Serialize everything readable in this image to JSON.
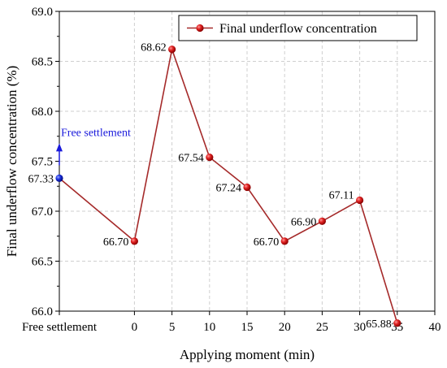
{
  "chart_data": {
    "type": "line",
    "title": "",
    "xlabel": "Applying moment (min)",
    "ylabel": "Final underflow concentration (%)",
    "ylim": [
      66.0,
      69.0
    ],
    "xlim": [
      -10,
      40
    ],
    "grid": true,
    "legend_placement": "top-right",
    "x_ticks": [
      -10,
      0,
      5,
      10,
      15,
      20,
      25,
      30,
      35,
      40
    ],
    "x_tick_labels": [
      "Free settlement",
      "0",
      "5",
      "10",
      "15",
      "20",
      "25",
      "30",
      "35",
      "40"
    ],
    "y_ticks": [
      66.0,
      66.5,
      67.0,
      67.5,
      68.0,
      68.5,
      69.0
    ],
    "y_tick_labels": [
      "66.0",
      "66.5",
      "67.0",
      "67.5",
      "68.0",
      "68.5",
      "69.0"
    ],
    "series": [
      {
        "name": "Final underflow concentration",
        "color": "#a52a2a",
        "marker_color": "#d42020",
        "points": [
          {
            "x": -10,
            "y": 67.33,
            "label": "67.33",
            "marker_color": "#1a2fd6"
          },
          {
            "x": 0,
            "y": 66.7,
            "label": "66.70"
          },
          {
            "x": 5,
            "y": 68.62,
            "label": "68.62"
          },
          {
            "x": 10,
            "y": 67.54,
            "label": "67.54"
          },
          {
            "x": 15,
            "y": 67.24,
            "label": "67.24"
          },
          {
            "x": 20,
            "y": 66.7,
            "label": "66.70"
          },
          {
            "x": 25,
            "y": 66.9,
            "label": "66.90"
          },
          {
            "x": 30,
            "y": 67.11,
            "label": "67.11"
          },
          {
            "x": 35,
            "y": 65.88,
            "label": "65.88"
          }
        ]
      }
    ],
    "annotations": [
      {
        "text": "Free settlement",
        "color": "#1a1adb",
        "x": -10,
        "y": 67.33
      }
    ]
  }
}
